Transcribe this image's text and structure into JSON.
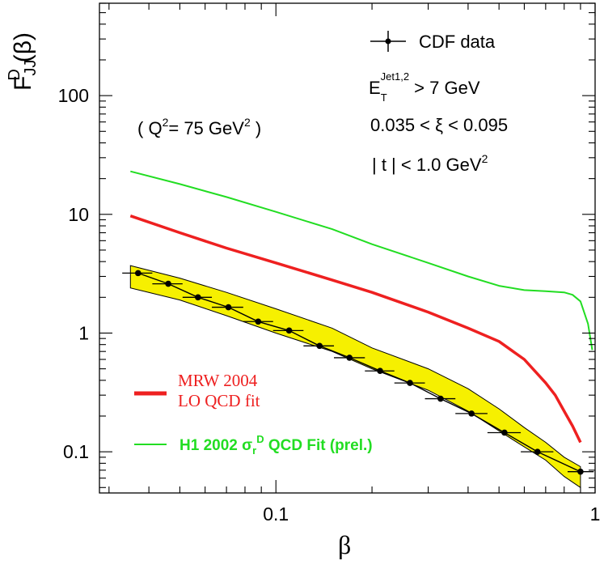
{
  "chart_data": {
    "type": "line",
    "x_scale": "log",
    "y_scale": "log",
    "xlim": [
      0.028,
      1.0
    ],
    "ylim": [
      0.045,
      600
    ],
    "xlabel": "β",
    "ylabel": {
      "main": "F",
      "sup": "D",
      "sub": "JJ",
      "arg": "(β)"
    },
    "x_ticks": [
      {
        "value": 0.1,
        "label": "0.1"
      },
      {
        "value": 1,
        "label": "1"
      }
    ],
    "y_ticks": [
      {
        "value": 0.1,
        "label": "0.1"
      },
      {
        "value": 1,
        "label": "1"
      },
      {
        "value": 10,
        "label": "10"
      },
      {
        "value": 100,
        "label": "100"
      }
    ],
    "annotations": {
      "q2": {
        "pre": "( Q",
        "sup": "2",
        "mid": "= 75 GeV",
        "sup2": "2",
        "post": " )"
      },
      "et": {
        "pre": "E",
        "sub": "T",
        "sup": "Jet1,2",
        "post": " > 7 GeV"
      },
      "xi": {
        "text": "0.035 < ξ < 0.095"
      },
      "t": {
        "pre": "| t | < 1.0 GeV",
        "sup": "2"
      }
    },
    "legend_top": {
      "label": "CDF data",
      "placement": "top-right"
    },
    "legend_bottom": {
      "mrw": {
        "line1": "MRW 2004",
        "line2": "LO QCD fit",
        "color": "#ee2020"
      },
      "h1": {
        "pre": "H1 2002 σ",
        "sub": "r",
        "sup": "D",
        "post": " QCD Fit (prel.)",
        "color": "#22dd22"
      }
    },
    "series": [
      {
        "name": "H1 2002 QCD Fit (prel.)",
        "color": "#22dd22",
        "x": [
          0.035,
          0.05,
          0.07,
          0.1,
          0.15,
          0.2,
          0.3,
          0.4,
          0.5,
          0.6,
          0.7,
          0.8,
          0.85,
          0.9,
          0.95,
          0.98
        ],
        "y": [
          23,
          18,
          14,
          10.5,
          7.5,
          5.6,
          3.9,
          3.0,
          2.5,
          2.3,
          2.25,
          2.2,
          2.1,
          1.85,
          1.2,
          0.72
        ]
      },
      {
        "name": "MRW 2004 LO QCD fit",
        "color": "#ee2020",
        "x": [
          0.035,
          0.05,
          0.07,
          0.1,
          0.15,
          0.2,
          0.3,
          0.4,
          0.5,
          0.6,
          0.7,
          0.75,
          0.8,
          0.85,
          0.9
        ],
        "y": [
          9.7,
          7.0,
          5.2,
          3.9,
          2.8,
          2.2,
          1.5,
          1.1,
          0.85,
          0.6,
          0.38,
          0.3,
          0.22,
          0.165,
          0.12
        ]
      },
      {
        "name": "CDF data",
        "color": "#000000",
        "x": [
          0.037,
          0.046,
          0.057,
          0.071,
          0.088,
          0.11,
          0.137,
          0.17,
          0.212,
          0.263,
          0.328,
          0.41,
          0.52,
          0.66,
          0.9
        ],
        "y": [
          3.2,
          2.6,
          2.0,
          1.65,
          1.25,
          1.05,
          0.78,
          0.62,
          0.48,
          0.38,
          0.28,
          0.21,
          0.145,
          0.1,
          0.068
        ],
        "x_err_low": [
          0.033,
          0.041,
          0.051,
          0.063,
          0.079,
          0.098,
          0.122,
          0.152,
          0.19,
          0.235,
          0.293,
          0.365,
          0.46,
          0.585,
          0.82
        ],
        "x_err_high": [
          0.041,
          0.051,
          0.063,
          0.079,
          0.098,
          0.122,
          0.152,
          0.19,
          0.235,
          0.293,
          0.365,
          0.46,
          0.585,
          0.74,
          0.99
        ]
      }
    ],
    "band": {
      "name": "CDF systematic band",
      "fill": "#f6f000",
      "x": [
        0.035,
        0.05,
        0.07,
        0.1,
        0.15,
        0.2,
        0.3,
        0.4,
        0.5,
        0.6,
        0.7,
        0.8,
        0.9
      ],
      "low": [
        2.4,
        1.9,
        1.4,
        1.0,
        0.7,
        0.5,
        0.33,
        0.22,
        0.15,
        0.11,
        0.085,
        0.062,
        0.05
      ],
      "high": [
        3.7,
        2.9,
        2.2,
        1.6,
        1.1,
        0.75,
        0.5,
        0.34,
        0.23,
        0.16,
        0.12,
        0.09,
        0.075
      ]
    }
  }
}
